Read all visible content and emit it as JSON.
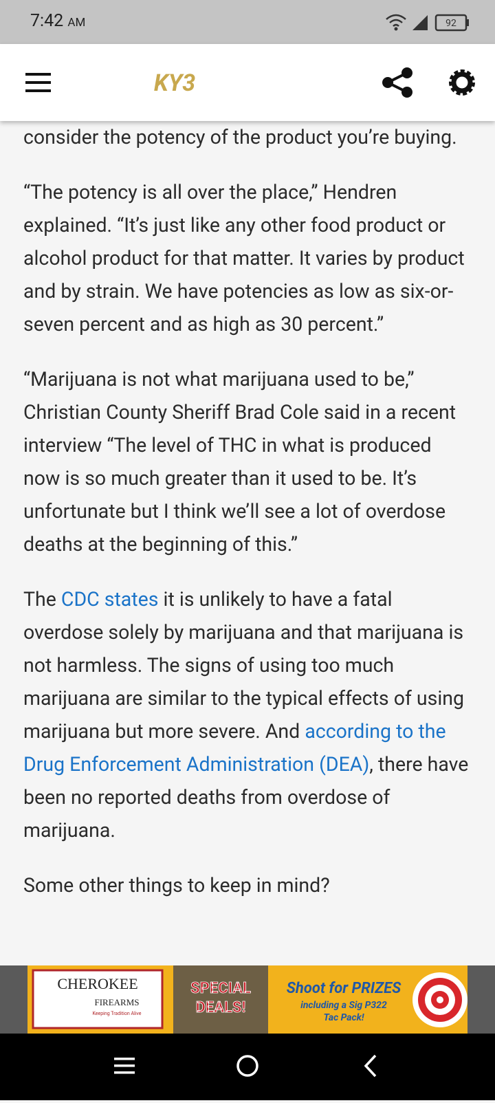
{
  "status_bar": {
    "time": "7:42",
    "period": "AM",
    "battery": "92"
  },
  "header": {
    "logo": "KY3"
  },
  "article": {
    "paragraphs": [
      [
        {
          "text": "consider the potency of the product you’re buying.",
          "link": false
        }
      ],
      [
        {
          "text": "“The potency is all over the place,” Hendren explained. “It’s just like any other food product or alcohol product for that matter. It varies by product and by strain. We have potencies as low as six-or-seven percent and as high as 30 percent.”",
          "link": false
        }
      ],
      [
        {
          "text": "“Marijuana is not what marijuana used to be,” Christian County Sheriff Brad Cole said in a recent interview “The level of THC in what is produced now is so much greater than it used to be. It’s unfortunate but I think we’ll see a lot of overdose deaths at the beginning of this.”",
          "link": false
        }
      ],
      [
        {
          "text": "The ",
          "link": false
        },
        {
          "text": "CDC states",
          "link": true
        },
        {
          "text": " it is unlikely to have a fatal overdose solely by marijuana and that marijuana is not harmless. The signs of using too much marijuana are similar to the typical effects of using marijuana but more severe. And ",
          "link": false
        },
        {
          "text": "according to the Drug Enforcement Administration (DEA)",
          "link": true
        },
        {
          "text": ", there have been no reported deaths from overdose of marijuana.",
          "link": false
        }
      ],
      [
        {
          "text": "Some other things to keep in mind?",
          "link": false
        }
      ]
    ]
  },
  "ad": {
    "brand": "CHEROKEE",
    "brand_sub": "FIREARMS",
    "tagline": "Keeping Tradition Alive",
    "deal_1": "SPECIAL",
    "deal_2": "DEALS!",
    "promo_1": "Shoot for PRIZES",
    "promo_2": "including a Sig P322",
    "promo_3": "Tac Pack!"
  }
}
